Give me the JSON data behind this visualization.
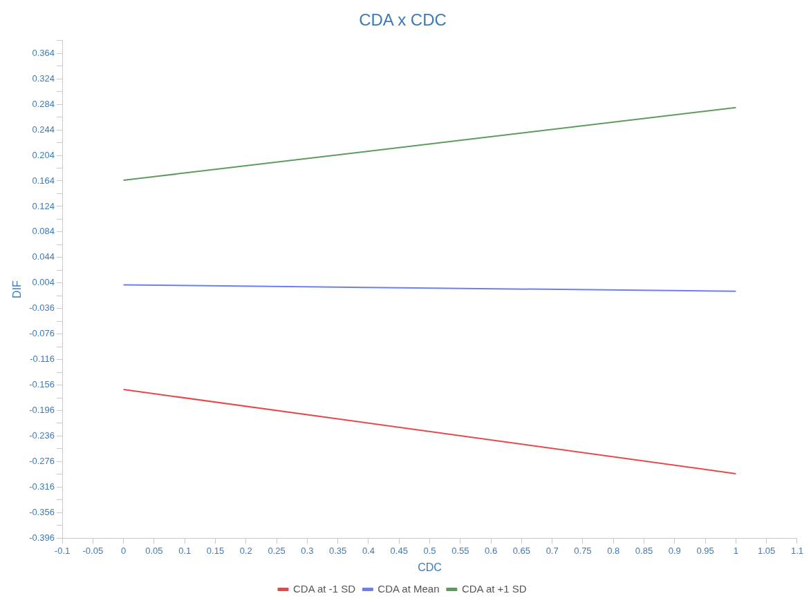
{
  "chart_data": {
    "type": "line",
    "title": "CDA x CDC",
    "xlabel": "CDC",
    "ylabel": "DIF",
    "x": [
      0,
      1
    ],
    "series": [
      {
        "name": "CDA at -1 SD",
        "color": "#e8474a",
        "values": [
          -0.163,
          -0.295
        ]
      },
      {
        "name": "CDA at Mean",
        "color": "#6b7ff0",
        "values": [
          0.001,
          -0.009
        ]
      },
      {
        "name": "CDA at +1 SD",
        "color": "#5d9a5d",
        "values": [
          0.165,
          0.279
        ]
      }
    ],
    "xlim": [
      -0.1,
      1.1
    ],
    "xticks": [
      -0.1,
      -0.05,
      0,
      0.05,
      0.1,
      0.15,
      0.2,
      0.25,
      0.3,
      0.35,
      0.4,
      0.45,
      0.5,
      0.55,
      0.6,
      0.65,
      0.7,
      0.75,
      0.8,
      0.85,
      0.9,
      0.95,
      1,
      1.05,
      1.1
    ],
    "ylim": [
      -0.396,
      0.384
    ],
    "yticks": [
      -0.396,
      {
        "value": -0.376,
        "label": null
      },
      -0.356,
      {
        "value": -0.336,
        "label": null
      },
      -0.316,
      {
        "value": -0.296,
        "label": null
      },
      -0.276,
      {
        "value": -0.256,
        "label": null
      },
      -0.236,
      {
        "value": -0.216,
        "label": null
      },
      -0.196,
      {
        "value": -0.176,
        "label": null
      },
      -0.156,
      {
        "value": -0.136,
        "label": null
      },
      -0.116,
      {
        "value": -0.096,
        "label": null
      },
      -0.076,
      {
        "value": -0.056,
        "label": null
      },
      -0.036,
      {
        "value": -0.016,
        "label": null
      },
      0.004,
      {
        "value": 0.024,
        "label": null
      },
      0.044,
      {
        "value": 0.064,
        "label": null
      },
      0.084,
      {
        "value": 0.104,
        "label": null
      },
      0.124,
      {
        "value": 0.144,
        "label": null
      },
      0.164,
      {
        "value": 0.184,
        "label": null
      },
      0.204,
      {
        "value": 0.224,
        "label": null
      },
      0.244,
      {
        "value": 0.264,
        "label": null
      },
      0.284,
      {
        "value": 0.304,
        "label": null
      },
      0.324,
      {
        "value": 0.344,
        "label": null
      },
      0.364,
      {
        "value": 0.384,
        "label": null
      }
    ],
    "grid": false,
    "legend": "bottom",
    "marker": "none",
    "line_style": "solid"
  }
}
